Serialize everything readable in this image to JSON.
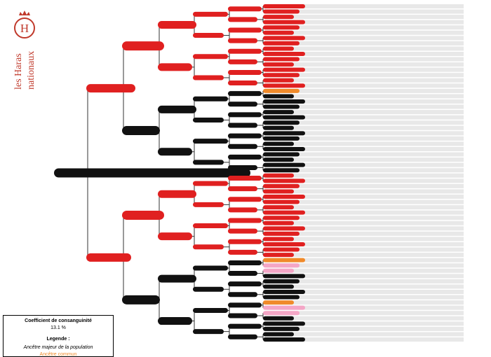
{
  "brand": {
    "emblem_letter": "H",
    "line1": "les Haras",
    "line2": "nationaux",
    "color": "#c0392b"
  },
  "legend": {
    "coef_title": "Coefficient de consanguinité",
    "coef_value": "13.1 %",
    "title": "Legende :",
    "major": "Ancêtre majeur de la population",
    "common": "Ancêtre commun",
    "common_color": "#f08a2a"
  },
  "colors": {
    "red": "#e02020",
    "black": "#111111",
    "orange": "#f08a2a",
    "pink": "#f4a6c6",
    "bar": "#e8e8e8",
    "line": "#333333"
  },
  "pedigree": {
    "gen6_colors": [
      "red",
      "red",
      "red",
      "red",
      "red",
      "red",
      "red",
      "red",
      "red",
      "red",
      "red",
      "red",
      "red",
      "red",
      "red",
      "red",
      "orange",
      "black",
      "black",
      "black",
      "black",
      "black",
      "black",
      "black",
      "black",
      "black",
      "black",
      "black",
      "black",
      "black",
      "black",
      "black",
      "red",
      "red",
      "red",
      "red",
      "red",
      "red",
      "red",
      "red",
      "red",
      "red",
      "red",
      "red",
      "red",
      "red",
      "red",
      "red",
      "orange",
      "pink",
      "pink",
      "black",
      "black",
      "black",
      "black",
      "black",
      "orange",
      "pink",
      "pink",
      "black",
      "black",
      "black",
      "black",
      "black"
    ]
  }
}
